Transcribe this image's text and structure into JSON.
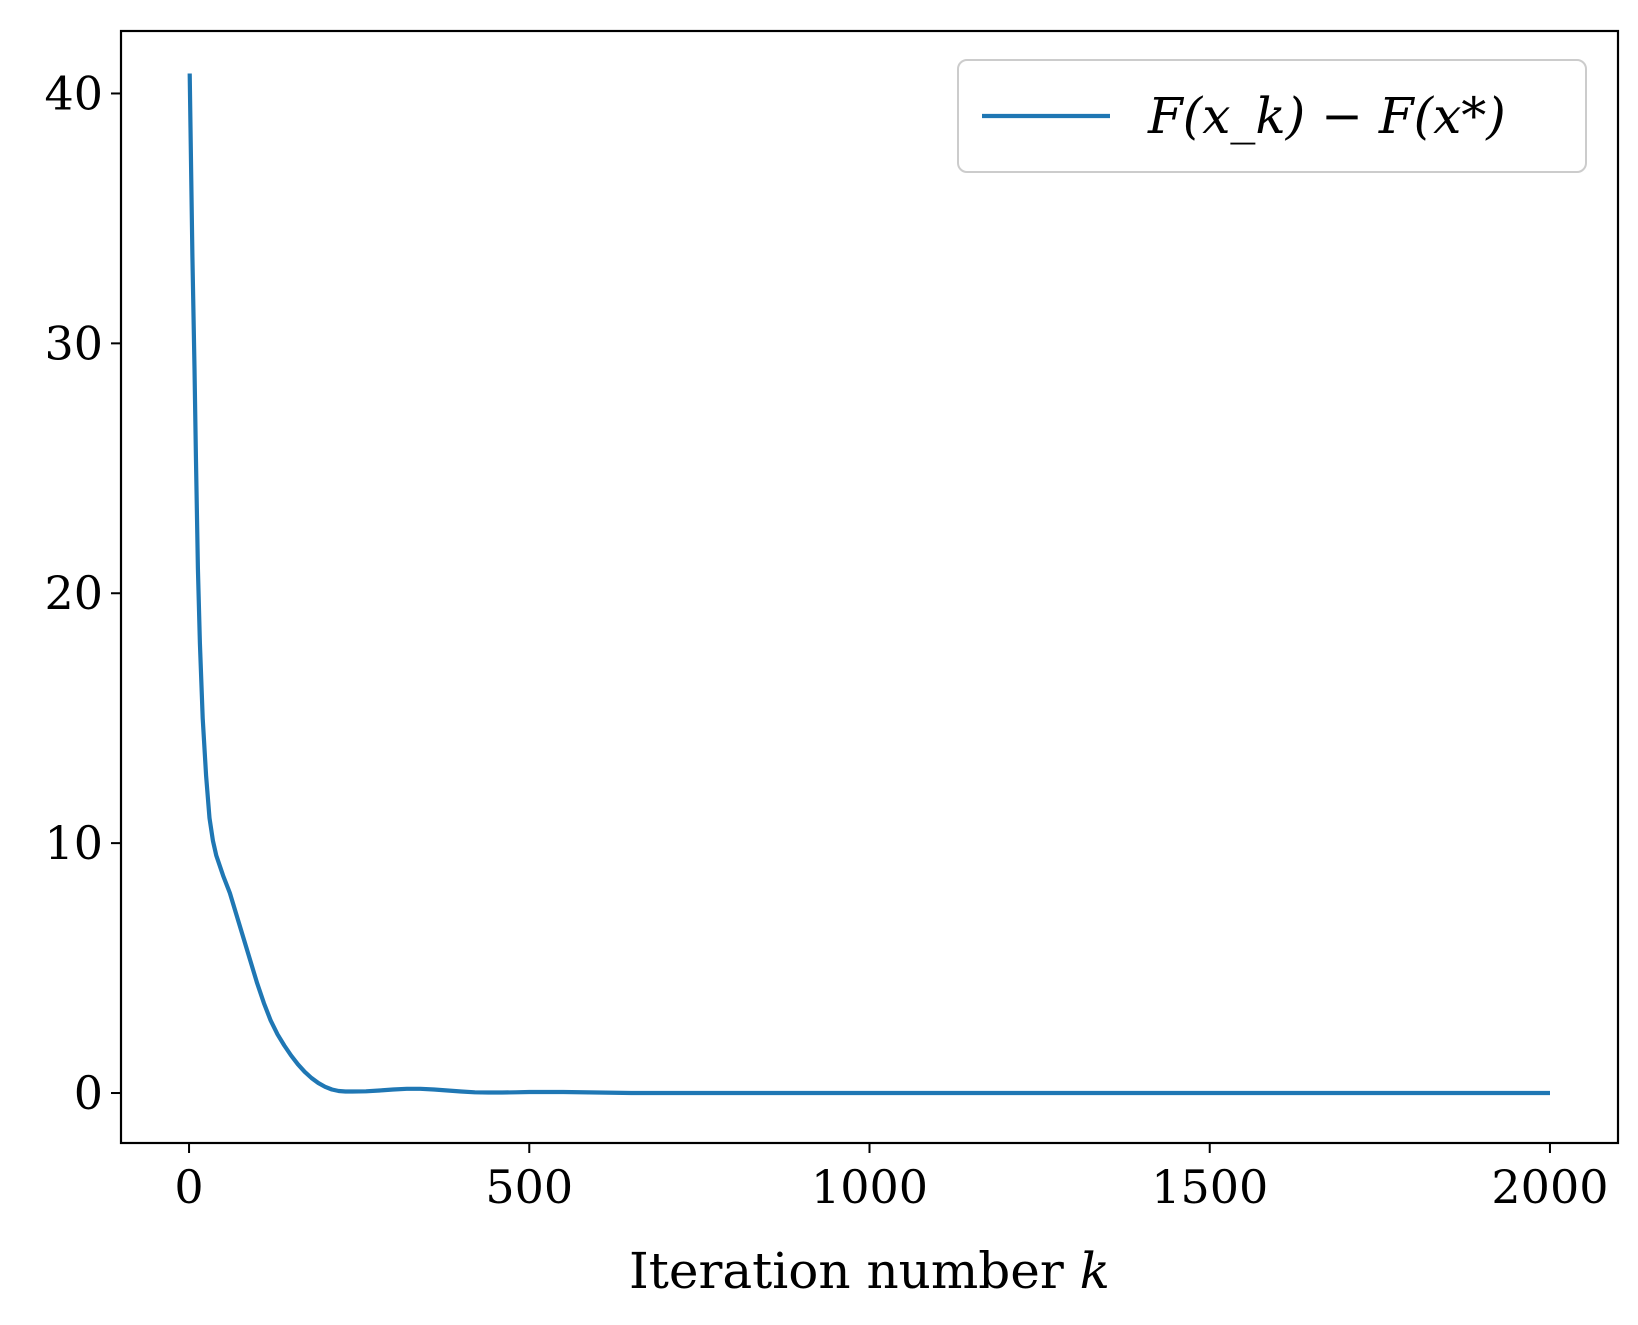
{
  "chart_data": {
    "type": "line",
    "title": "",
    "xlabel": "Iteration number k",
    "ylabel": "",
    "xlim": [
      -100,
      2100
    ],
    "ylim": [
      -2,
      42.5
    ],
    "xticks": [
      0,
      500,
      1000,
      1500,
      2000
    ],
    "yticks": [
      0,
      10,
      20,
      30,
      40
    ],
    "grid": false,
    "legend_position": "top-right",
    "series": [
      {
        "name": "F(x_k) − F(x*)",
        "color": "#1f77b4",
        "x": [
          1,
          3,
          5,
          8,
          10,
          13,
          16,
          20,
          25,
          30,
          35,
          40,
          45,
          50,
          60,
          70,
          80,
          90,
          100,
          110,
          120,
          130,
          140,
          150,
          160,
          170,
          180,
          190,
          200,
          210,
          220,
          230,
          240,
          260,
          280,
          300,
          320,
          340,
          360,
          380,
          400,
          420,
          440,
          460,
          480,
          500,
          550,
          600,
          650,
          700,
          800,
          900,
          1000,
          1200,
          1400,
          1600,
          1800,
          2000
        ],
        "y": [
          40.8,
          37.0,
          33.5,
          29.0,
          25.5,
          21.0,
          18.0,
          15.0,
          12.7,
          11.0,
          10.1,
          9.5,
          9.1,
          8.7,
          8.0,
          7.1,
          6.2,
          5.3,
          4.4,
          3.6,
          2.9,
          2.35,
          1.9,
          1.5,
          1.15,
          0.85,
          0.6,
          0.4,
          0.25,
          0.14,
          0.08,
          0.06,
          0.06,
          0.07,
          0.1,
          0.14,
          0.17,
          0.17,
          0.14,
          0.1,
          0.06,
          0.03,
          0.02,
          0.02,
          0.03,
          0.04,
          0.04,
          0.02,
          0.0,
          0.0,
          0.0,
          0.0,
          0.0,
          0.0,
          0.0,
          0.0,
          0.0,
          0.0
        ]
      }
    ]
  }
}
